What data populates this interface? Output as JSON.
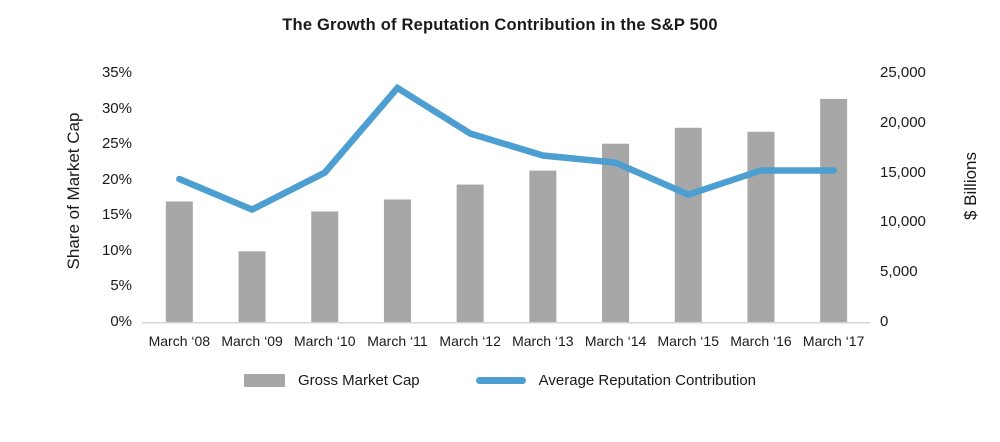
{
  "chart_data": {
    "type": "combo-bar-line",
    "title": "The Growth of Reputation Contribution in the S&P 500",
    "categories": [
      "March ‘08",
      "March ‘09",
      "March ‘10",
      "March ‘11",
      "March ‘12",
      "March ‘13",
      "March ‘14",
      "March ‘15",
      "March ‘16",
      "March ‘17"
    ],
    "series": [
      {
        "name": "Gross Market Cap",
        "type": "bar",
        "axis": "right",
        "values": [
          12100,
          7100,
          11100,
          12300,
          13800,
          15200,
          17900,
          19500,
          19100,
          22400
        ]
      },
      {
        "name": "Average Reputation Contribution",
        "type": "line",
        "axis": "left",
        "values": [
          20.1,
          15.8,
          21.0,
          32.9,
          26.5,
          23.4,
          22.4,
          17.9,
          21.3,
          21.3
        ]
      }
    ],
    "left_axis": {
      "label": "Share of Market Cap",
      "ticks": [
        "0%",
        "5%",
        "10%",
        "15%",
        "20%",
        "25%",
        "30%",
        "35%"
      ],
      "min": 0,
      "max": 35
    },
    "right_axis": {
      "label": "$ Billions",
      "ticks": [
        "0",
        "5,000",
        "10,000",
        "15,000",
        "20,000",
        "25,000"
      ],
      "min": 0,
      "max": 25000
    },
    "legend_position": "bottom",
    "grid": false,
    "colors": {
      "bar": "#a7a7a7",
      "line": "#4d9fd2",
      "baseline": "#d4d4d4",
      "text": "#1a1a1a"
    }
  }
}
